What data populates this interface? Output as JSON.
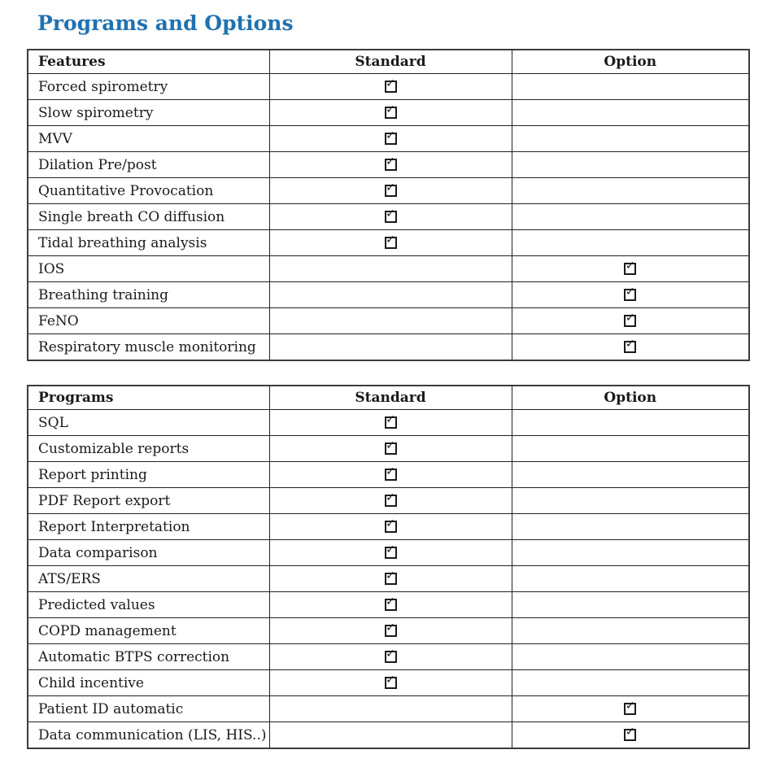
{
  "page": {
    "title": "Programs and Options",
    "title_color": "#1f72b0"
  },
  "checkbox": {
    "glyph": "✓",
    "meaning": "included"
  },
  "tables": [
    {
      "name": "features-table",
      "headers": [
        "Features",
        "Standard",
        "Option"
      ],
      "rows": [
        {
          "label": "Forced spirometry",
          "standard": true,
          "option": false
        },
        {
          "label": "Slow spirometry",
          "standard": true,
          "option": false
        },
        {
          "label": "MVV",
          "standard": true,
          "option": false
        },
        {
          "label": "Dilation Pre/post",
          "standard": true,
          "option": false
        },
        {
          "label": "Quantitative Provocation",
          "standard": true,
          "option": false
        },
        {
          "label": "Single breath CO diffusion",
          "standard": true,
          "option": false
        },
        {
          "label": "Tidal breathing analysis",
          "standard": true,
          "option": false
        },
        {
          "label": "IOS",
          "standard": false,
          "option": true
        },
        {
          "label": "Breathing training",
          "standard": false,
          "option": true
        },
        {
          "label": "FeNO",
          "standard": false,
          "option": true
        },
        {
          "label": "Respiratory muscle monitoring",
          "standard": false,
          "option": true
        }
      ]
    },
    {
      "name": "programs-table",
      "headers": [
        "Programs",
        "Standard",
        "Option"
      ],
      "rows": [
        {
          "label": "SQL",
          "standard": true,
          "option": false
        },
        {
          "label": "Customizable reports",
          "standard": true,
          "option": false
        },
        {
          "label": "Report printing",
          "standard": true,
          "option": false
        },
        {
          "label": "PDF Report export",
          "standard": true,
          "option": false
        },
        {
          "label": "Report Interpretation",
          "standard": true,
          "option": false
        },
        {
          "label": "Data comparison",
          "standard": true,
          "option": false
        },
        {
          "label": "ATS/ERS",
          "standard": true,
          "option": false
        },
        {
          "label": "Predicted values",
          "standard": true,
          "option": false
        },
        {
          "label": "COPD management",
          "standard": true,
          "option": false
        },
        {
          "label": "Automatic BTPS correction",
          "standard": true,
          "option": false
        },
        {
          "label": "Child incentive",
          "standard": true,
          "option": false
        },
        {
          "label": "Patient ID automatic",
          "standard": false,
          "option": true
        },
        {
          "label": "Data communication (LIS, HIS..)",
          "standard": false,
          "option": true
        }
      ]
    }
  ]
}
